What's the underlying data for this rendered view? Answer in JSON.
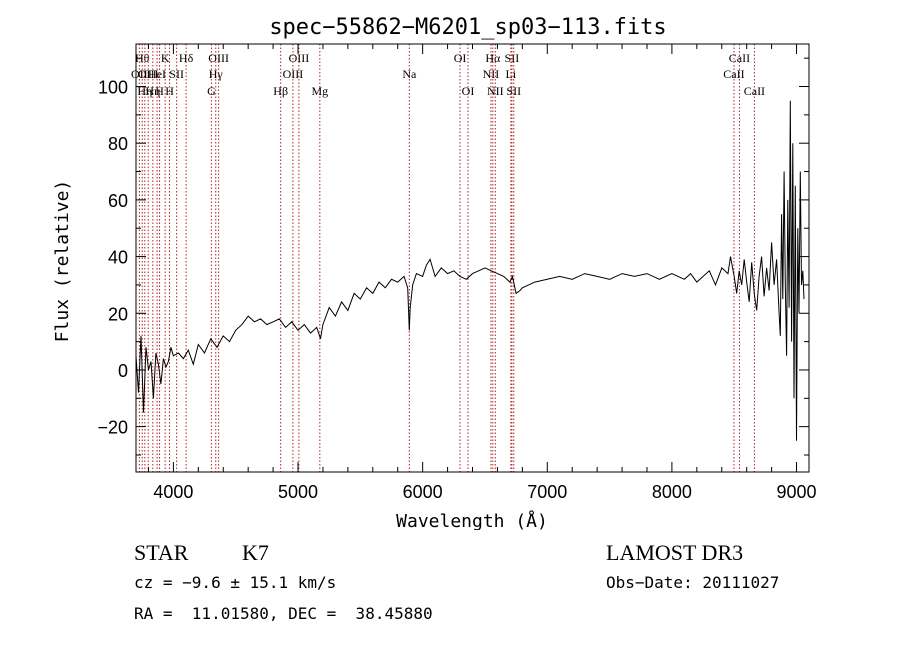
{
  "chart_data": {
    "type": "line",
    "title": "spec−55862−M6201_sp03−113.fits",
    "xlabel": "Wavelength (Å)",
    "ylabel": "Flux (relative)",
    "xlim": [
      3700,
      9100
    ],
    "ylim": [
      -36,
      115
    ],
    "xticks": [
      4000,
      5000,
      6000,
      7000,
      8000,
      9000
    ],
    "yticks": [
      -20,
      0,
      20,
      40,
      60,
      80,
      100
    ],
    "ytick_labels": [
      "−20",
      "0",
      "20",
      "40",
      "60",
      "80",
      "100"
    ],
    "grid": false,
    "line_color": "#000000",
    "marker_color": "#b22222",
    "series": [
      {
        "name": "flux",
        "x": [
          3700,
          3720,
          3740,
          3760,
          3780,
          3800,
          3820,
          3840,
          3860,
          3880,
          3900,
          3920,
          3940,
          3960,
          3980,
          4000,
          4040,
          4080,
          4120,
          4160,
          4200,
          4250,
          4300,
          4350,
          4400,
          4450,
          4500,
          4550,
          4600,
          4650,
          4700,
          4750,
          4800,
          4850,
          4900,
          4950,
          5000,
          5050,
          5100,
          5150,
          5180,
          5200,
          5250,
          5300,
          5350,
          5400,
          5450,
          5500,
          5550,
          5600,
          5650,
          5700,
          5750,
          5800,
          5850,
          5880,
          5893,
          5900,
          5920,
          5950,
          6000,
          6030,
          6060,
          6100,
          6150,
          6200,
          6250,
          6300,
          6350,
          6400,
          6450,
          6500,
          6550,
          6600,
          6650,
          6700,
          6720,
          6750,
          6780,
          6800,
          6850,
          6900,
          7000,
          7100,
          7200,
          7300,
          7400,
          7500,
          7600,
          7700,
          7800,
          7900,
          8000,
          8050,
          8100,
          8150,
          8200,
          8250,
          8300,
          8350,
          8400,
          8450,
          8470,
          8500,
          8520,
          8540,
          8560,
          8580,
          8600,
          8620,
          8640,
          8660,
          8680,
          8700,
          8720,
          8740,
          8760,
          8780,
          8800,
          8820,
          8840,
          8860,
          8870,
          8880,
          8890,
          8900,
          8910,
          8920,
          8930,
          8940,
          8950,
          8960,
          8970,
          8980,
          8990,
          9000,
          9010,
          9020,
          9030,
          9040,
          9050,
          9060
        ],
        "values": [
          5,
          -8,
          12,
          -15,
          8,
          0,
          3,
          -10,
          6,
          2,
          -5,
          4,
          1,
          3,
          8,
          5,
          6,
          4,
          7,
          2,
          9,
          6,
          11,
          8,
          12,
          10,
          14,
          16,
          19,
          17,
          18,
          16,
          17,
          18,
          15,
          17,
          14,
          16,
          13,
          15,
          11,
          16,
          22,
          19,
          24,
          21,
          27,
          25,
          29,
          27,
          31,
          29,
          32,
          31,
          33,
          29,
          14,
          22,
          30,
          34,
          33,
          37,
          39,
          33,
          36,
          34,
          35,
          33,
          32,
          34,
          35,
          36,
          35,
          34,
          33,
          31,
          33,
          27,
          28,
          29,
          30,
          31,
          32,
          33,
          32,
          34,
          33,
          32,
          34,
          33,
          34,
          32,
          34,
          33,
          32,
          34,
          31,
          33,
          35,
          30,
          36,
          34,
          40,
          33,
          27,
          35,
          30,
          39,
          31,
          24,
          38,
          27,
          21,
          33,
          40,
          26,
          36,
          28,
          45,
          30,
          39,
          20,
          12,
          55,
          25,
          70,
          30,
          5,
          60,
          22,
          95,
          10,
          80,
          -10,
          65,
          -25,
          50,
          20,
          70,
          30,
          35,
          25
        ]
      }
    ],
    "line_markers": [
      {
        "w": 3727,
        "label": "OII",
        "row": 2
      },
      {
        "w": 3750,
        "label": "Hθ",
        "row": 1
      },
      {
        "w": 3771,
        "label": "Hη",
        "row": 3
      },
      {
        "w": 3798,
        "label": "OIII",
        "row": 2
      },
      {
        "w": 3835,
        "label": "Hη",
        "row": 3
      },
      {
        "w": 3869,
        "label": "HeI",
        "row": 2
      },
      {
        "w": 3889,
        "label": "H",
        "row": 3
      },
      {
        "w": 3934,
        "label": "K",
        "row": 1
      },
      {
        "w": 3969,
        "label": "H",
        "row": 3
      },
      {
        "w": 4026,
        "label": "SII",
        "row": 2
      },
      {
        "w": 4102,
        "label": "Hδ",
        "row": 1
      },
      {
        "w": 4305,
        "label": "G",
        "row": 3
      },
      {
        "w": 4340,
        "label": "Hγ",
        "row": 2
      },
      {
        "w": 4363,
        "label": "OIII",
        "row": 1
      },
      {
        "w": 4861,
        "label": "Hβ",
        "row": 3
      },
      {
        "w": 4959,
        "label": "OIII",
        "row": 2
      },
      {
        "w": 5007,
        "label": "OIII",
        "row": 1
      },
      {
        "w": 5175,
        "label": "Mg",
        "row": 3
      },
      {
        "w": 5893,
        "label": "Na",
        "row": 2
      },
      {
        "w": 6300,
        "label": "OI",
        "row": 1
      },
      {
        "w": 6364,
        "label": "OI",
        "row": 3
      },
      {
        "w": 6548,
        "label": "NII",
        "row": 2
      },
      {
        "w": 6563,
        "label": "Hα",
        "row": 1
      },
      {
        "w": 6583,
        "label": "NII",
        "row": 3
      },
      {
        "w": 6708,
        "label": "Li",
        "row": 2
      },
      {
        "w": 6716,
        "label": "SII",
        "row": 1
      },
      {
        "w": 6731,
        "label": "SII",
        "row": 3
      },
      {
        "w": 8498,
        "label": "CaII",
        "row": 2
      },
      {
        "w": 8542,
        "label": "CaII",
        "row": 1
      },
      {
        "w": 8662,
        "label": "CaII",
        "row": 3
      }
    ]
  },
  "info": {
    "object_class": "STAR",
    "subclass": "K7",
    "cz": "cz = −9.6 ± 15.1 km/s",
    "coords": "RA =  11.01580, DEC =  38.45880",
    "survey": "LAMOST DR3",
    "obs_date": "Obs−Date: 20111027"
  }
}
